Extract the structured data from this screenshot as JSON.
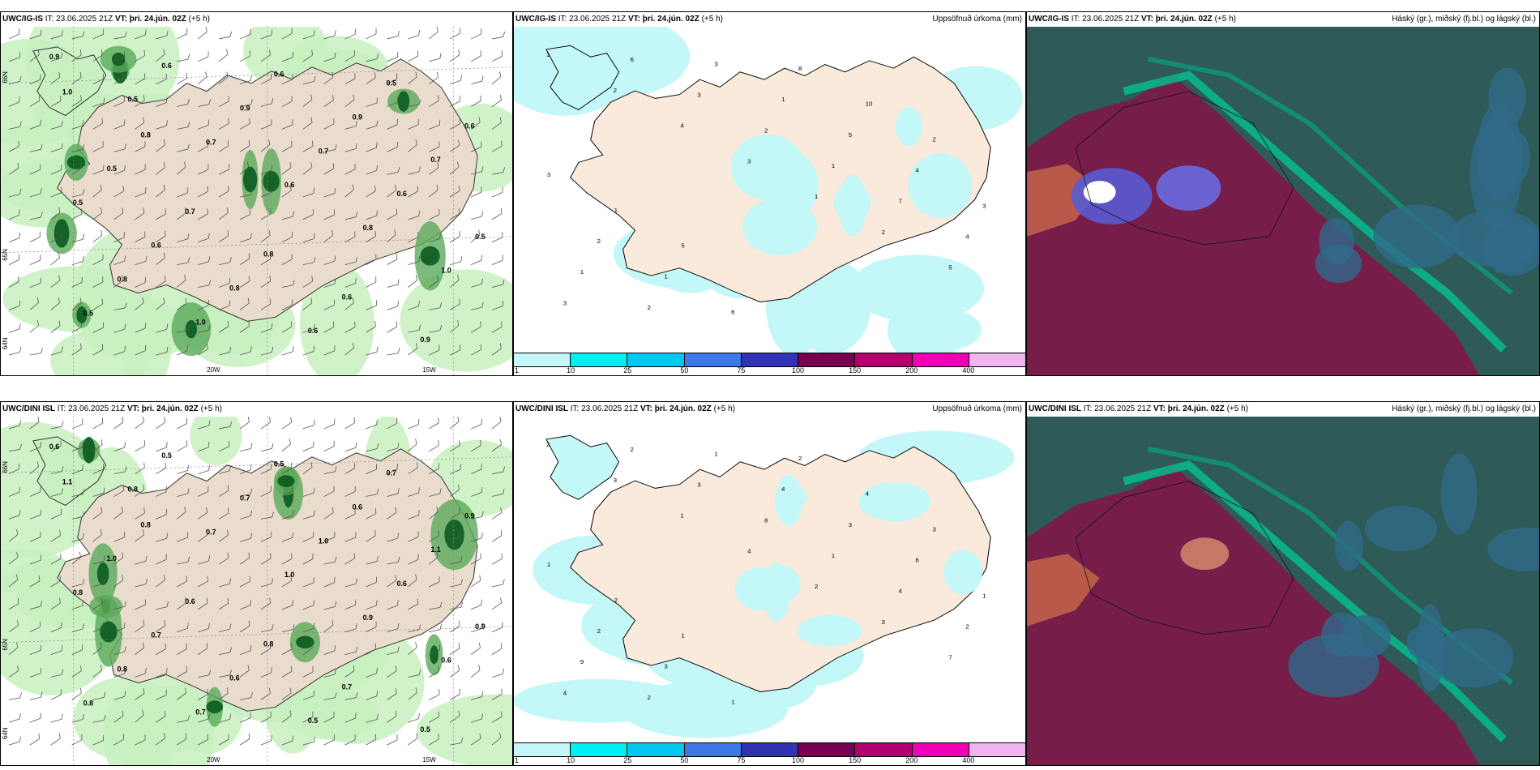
{
  "rows": [
    {
      "model": "UWC/IG-IS",
      "it_label": "IT:",
      "it_value": "23.06.2025 21Z",
      "vt_label": "VT:",
      "vt_value": "þri. 24.jún. 02Z",
      "offset": "(+5 h)",
      "wind_values": [
        "0.9",
        "0.5",
        "0.7",
        "0.6",
        "0.8",
        "1.0",
        "0.5",
        "0.6",
        "0.9",
        "0.7",
        "0.6",
        "0.5",
        "0.8",
        "1.0",
        "0.6",
        "0.9",
        "0.7",
        "0.5",
        "0.6",
        "0.8",
        "0.6",
        "0.5",
        "0.6",
        "0.5",
        "0.7",
        "0.8",
        "0.6",
        "0.9",
        "1.0",
        "0.8"
      ],
      "precip_values": [
        "1",
        "2",
        "4",
        "3",
        "1",
        "2",
        "5",
        "3",
        "6",
        "3",
        "2",
        "1",
        "7",
        "4",
        "1",
        "2",
        "3",
        "1",
        "5",
        "4",
        "3",
        "2",
        "1",
        "6",
        "8",
        "10",
        "2",
        "3",
        "1",
        "5"
      ],
      "lon_labels": [
        "20W",
        "15W"
      ],
      "lat_labels": [
        "66N",
        "65N",
        "64N"
      ]
    },
    {
      "model": "UWC/DINI ISL",
      "it_label": "IT:",
      "it_value": "23.06.2025 21Z",
      "vt_label": "VT:",
      "vt_value": "þri. 24.jún. 02Z",
      "offset": "(+5 h)",
      "wind_values": [
        "0.6",
        "0.8",
        "0.7",
        "1.0",
        "0.9",
        "0.6",
        "0.8",
        "0.5",
        "0.7",
        "1.0",
        "0.6",
        "0.9",
        "0.8",
        "0.7",
        "0.5",
        "0.6",
        "1.1",
        "0.8",
        "0.7",
        "0.6",
        "0.5",
        "0.7",
        "0.9",
        "1.0",
        "0.6",
        "0.8",
        "0.7",
        "0.5",
        "1.1",
        "0.8"
      ],
      "precip_values": [
        "2",
        "3",
        "1",
        "4",
        "2",
        "3",
        "7",
        "4",
        "2",
        "3",
        "8",
        "1",
        "4",
        "2",
        "9",
        "2",
        "1",
        "4",
        "3",
        "6",
        "1",
        "2",
        "3",
        "1",
        "2",
        "4",
        "3",
        "1",
        "2",
        "1"
      ],
      "lon_labels": [
        "20W",
        "15W"
      ],
      "lat_labels": [
        "66N",
        "65N",
        "64N"
      ]
    }
  ],
  "precip_title": "Uppsöfnuð úrkoma (mm)",
  "cloud_title": "Háský (gr.), miðský (fj.bl.) og lágský (bl.)",
  "legend": {
    "colors": [
      "#c4f7f7",
      "#00f0f0",
      "#00c8f0",
      "#3c78e6",
      "#3232b4",
      "#780050",
      "#b4006e",
      "#f000b4",
      "#f0b4f0"
    ],
    "labels": [
      "1",
      "10",
      "25",
      "50",
      "75",
      "100",
      "150",
      "200",
      "400"
    ]
  }
}
